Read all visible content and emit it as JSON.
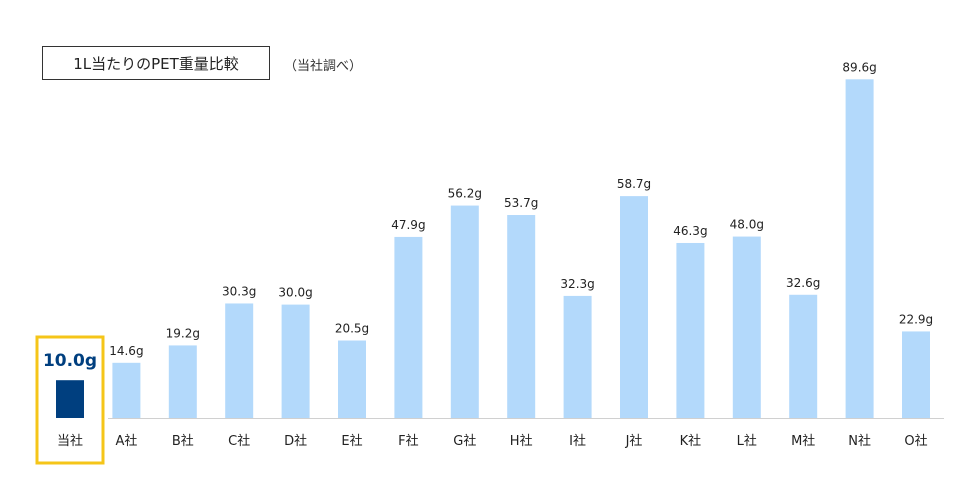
{
  "chart_data": {
    "type": "bar",
    "title": "1L当たりのPET重量比較",
    "note": "（当社調べ）",
    "categories": [
      "当社",
      "A社",
      "B社",
      "C社",
      "D社",
      "E社",
      "F社",
      "G社",
      "H社",
      "I社",
      "J社",
      "K社",
      "L社",
      "M社",
      "N社",
      "O社"
    ],
    "values": [
      10.0,
      14.6,
      19.2,
      30.3,
      30.0,
      20.5,
      47.9,
      56.2,
      53.7,
      32.3,
      58.7,
      46.3,
      48.0,
      32.6,
      89.6,
      22.9
    ],
    "value_labels": [
      "10.0g",
      "14.6g",
      "19.2g",
      "30.3g",
      "30.0g",
      "20.5g",
      "47.9g",
      "56.2g",
      "53.7g",
      "32.3g",
      "58.7g",
      "46.3g",
      "48.0g",
      "32.6g",
      "89.6g",
      "22.9g"
    ],
    "unit": "g",
    "highlight_index": 0,
    "ylim": [
      0,
      100
    ],
    "grid": false,
    "legend": "none",
    "colors": {
      "highlight_bar": "#003f7f",
      "highlight_label": "#003f7f",
      "highlight_frame": "#f5c518",
      "bar": "#b3d9fb",
      "axis": "#d0d0d0",
      "label": "#222222"
    }
  }
}
